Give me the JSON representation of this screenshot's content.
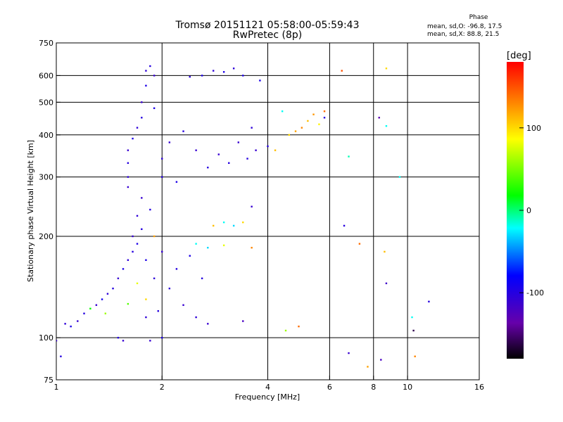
{
  "chart_data": {
    "type": "scatter",
    "title": "Tromsø 20151121 05:58:00-05:59:43",
    "subtitle": "RwPretec (8p)",
    "xlabel": "Frequency [MHz]",
    "ylabel": "Stationary phase Virtual Height [km]",
    "xscale": "log",
    "yscale": "log",
    "xlim": [
      1,
      16
    ],
    "ylim": [
      75,
      750
    ],
    "xticks": [
      "1",
      "2",
      "4",
      "6",
      "8",
      "10",
      "16"
    ],
    "xtick_values": [
      1,
      2,
      4,
      6,
      8,
      10,
      16
    ],
    "yticks": [
      "75",
      "100",
      "200",
      "300",
      "400",
      "500",
      "600",
      "750"
    ],
    "ytick_values": [
      75,
      100,
      200,
      300,
      400,
      500,
      600,
      750
    ],
    "x_gridlines": [
      2,
      4,
      6,
      8,
      10
    ],
    "y_gridlines": [
      100,
      200,
      300,
      400,
      500,
      600
    ],
    "grid": true,
    "phase_legend": {
      "heading": "Phase",
      "o_line": "mean, sd,O: -96.8, 17.5",
      "x_line": "mean, sd,X:  88.8, 21.5"
    },
    "colorbar": {
      "label": "[deg]",
      "range": [
        -180,
        180
      ],
      "ticks": [
        "100",
        "0",
        "-100"
      ],
      "tick_values": [
        100,
        0,
        -100
      ]
    },
    "series": [
      {
        "values": [
          [
            1.0,
            98,
            -110
          ],
          [
            1.03,
            88,
            -100
          ],
          [
            1.06,
            110,
            -105
          ],
          [
            1.1,
            108,
            -95
          ],
          [
            1.15,
            112,
            -110
          ],
          [
            1.2,
            118,
            -100
          ],
          [
            1.25,
            122,
            20
          ],
          [
            1.3,
            125,
            -110
          ],
          [
            1.35,
            130,
            -90
          ],
          [
            1.38,
            118,
            60
          ],
          [
            1.4,
            135,
            -105
          ],
          [
            1.45,
            140,
            -100
          ],
          [
            1.5,
            150,
            -110
          ],
          [
            1.5,
            100,
            -100
          ],
          [
            1.55,
            160,
            -95
          ],
          [
            1.55,
            98,
            -110
          ],
          [
            1.6,
            170,
            -105
          ],
          [
            1.6,
            126,
            40
          ],
          [
            1.65,
            180,
            -100
          ],
          [
            1.65,
            200,
            -110
          ],
          [
            1.7,
            190,
            -95
          ],
          [
            1.7,
            230,
            -105
          ],
          [
            1.7,
            145,
            80
          ],
          [
            1.75,
            210,
            -100
          ],
          [
            1.75,
            260,
            -110
          ],
          [
            1.8,
            115,
            -105
          ],
          [
            1.8,
            170,
            -95
          ],
          [
            1.8,
            130,
            100
          ],
          [
            1.85,
            240,
            -100
          ],
          [
            1.85,
            98,
            -110
          ],
          [
            1.9,
            150,
            -105
          ],
          [
            1.9,
            200,
            120
          ],
          [
            1.95,
            120,
            -100
          ],
          [
            2.0,
            180,
            -110
          ],
          [
            2.0,
            100,
            -95
          ],
          [
            2.1,
            140,
            -105
          ],
          [
            2.2,
            160,
            -100
          ],
          [
            2.3,
            125,
            -110
          ],
          [
            2.4,
            175,
            -95
          ],
          [
            2.5,
            115,
            -105
          ],
          [
            2.6,
            150,
            -100
          ],
          [
            2.7,
            110,
            -110
          ],
          [
            2.5,
            190,
            -20
          ],
          [
            2.7,
            185,
            -30
          ],
          [
            2.8,
            215,
            110
          ],
          [
            3.0,
            220,
            -20
          ],
          [
            3.2,
            215,
            -30
          ],
          [
            3.4,
            220,
            100
          ],
          [
            3.6,
            245,
            -110
          ],
          [
            3.0,
            188,
            80
          ],
          [
            3.6,
            185,
            130
          ],
          [
            1.6,
            280,
            -110
          ],
          [
            1.6,
            300,
            -105
          ],
          [
            1.6,
            330,
            -100
          ],
          [
            1.6,
            360,
            -110
          ],
          [
            1.65,
            390,
            -95
          ],
          [
            1.7,
            420,
            -105
          ],
          [
            1.75,
            450,
            -100
          ],
          [
            1.75,
            500,
            -110
          ],
          [
            1.8,
            560,
            -95
          ],
          [
            1.8,
            620,
            -105
          ],
          [
            1.85,
            640,
            -100
          ],
          [
            1.9,
            600,
            -110
          ],
          [
            1.9,
            480,
            -95
          ],
          [
            2.0,
            300,
            -100
          ],
          [
            2.0,
            340,
            -105
          ],
          [
            2.1,
            380,
            -110
          ],
          [
            2.2,
            290,
            -95
          ],
          [
            2.3,
            410,
            -100
          ],
          [
            2.4,
            595,
            -105
          ],
          [
            2.5,
            360,
            -110
          ],
          [
            2.6,
            600,
            -95
          ],
          [
            2.7,
            320,
            -100
          ],
          [
            2.8,
            620,
            -105
          ],
          [
            2.9,
            350,
            -110
          ],
          [
            3.0,
            615,
            -95
          ],
          [
            3.1,
            330,
            -100
          ],
          [
            3.2,
            630,
            -105
          ],
          [
            3.3,
            380,
            -110
          ],
          [
            3.4,
            600,
            -95
          ],
          [
            3.5,
            340,
            -100
          ],
          [
            3.6,
            420,
            -105
          ],
          [
            3.7,
            360,
            -110
          ],
          [
            3.8,
            580,
            -95
          ],
          [
            4.0,
            370,
            -100
          ],
          [
            4.2,
            360,
            110
          ],
          [
            4.4,
            470,
            -20
          ],
          [
            4.6,
            400,
            100
          ],
          [
            4.8,
            410,
            120
          ],
          [
            5.0,
            420,
            130
          ],
          [
            5.2,
            440,
            110
          ],
          [
            5.4,
            460,
            125
          ],
          [
            5.6,
            430,
            90
          ],
          [
            5.8,
            470,
            140
          ],
          [
            5.8,
            450,
            -100
          ],
          [
            6.5,
            620,
            150
          ],
          [
            8.7,
            630,
            100
          ],
          [
            8.3,
            450,
            -130
          ],
          [
            8.7,
            425,
            -20
          ],
          [
            6.6,
            215,
            -100
          ],
          [
            6.8,
            345,
            -10
          ],
          [
            7.3,
            190,
            140
          ],
          [
            8.6,
            180,
            110
          ],
          [
            8.7,
            145,
            -115
          ],
          [
            9.5,
            300,
            -20
          ],
          [
            10.3,
            115,
            -20
          ],
          [
            10.4,
            105,
            -160
          ],
          [
            10.5,
            88,
            130
          ],
          [
            11.5,
            128,
            -100
          ],
          [
            6.8,
            90,
            -110
          ],
          [
            7.7,
            82,
            120
          ],
          [
            8.4,
            86,
            -120
          ],
          [
            4.5,
            105,
            60
          ],
          [
            4.9,
            108,
            140
          ],
          [
            3.4,
            112,
            -120
          ]
        ]
      }
    ]
  }
}
